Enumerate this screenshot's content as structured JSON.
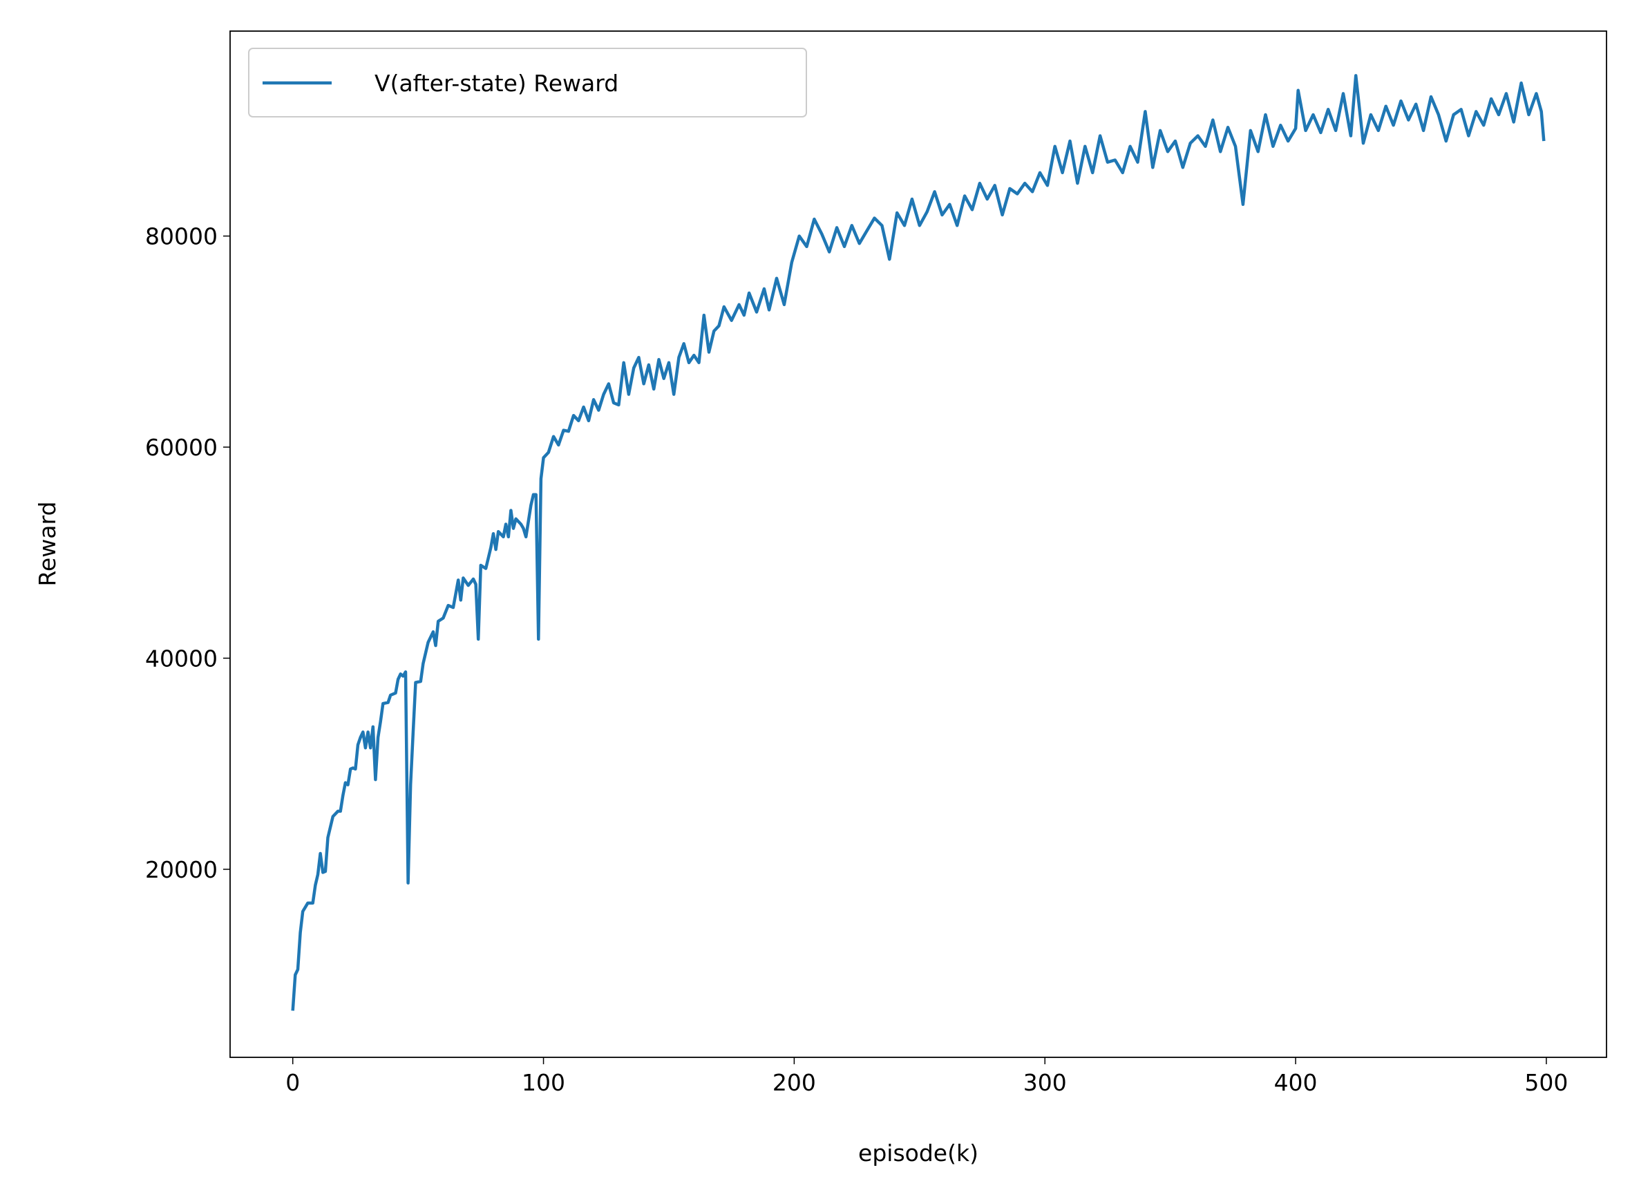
{
  "chart_data": {
    "type": "line",
    "xlabel": "episode(k)",
    "ylabel": "Reward",
    "xlim": [
      -25,
      524
    ],
    "ylim": [
      2180,
      99420
    ],
    "xticks": [
      0,
      100,
      200,
      300,
      400,
      500
    ],
    "yticks": [
      20000,
      40000,
      60000,
      80000
    ],
    "legend": "upper left",
    "grid": false,
    "series": [
      {
        "name": "V(after-state) Reward",
        "color": "#1f77b4",
        "x": [
          0,
          1,
          2,
          3,
          4,
          6,
          8,
          9,
          10,
          11,
          12,
          13,
          14,
          16,
          18,
          19,
          20,
          21,
          22,
          23,
          24,
          25,
          26,
          27,
          28,
          29,
          30,
          31,
          32,
          33,
          34,
          35,
          36,
          38,
          39,
          41,
          42,
          43,
          44,
          45,
          46,
          47,
          48,
          49,
          51,
          52,
          54,
          56,
          57,
          58,
          60,
          62,
          64,
          66,
          67,
          68,
          70,
          72,
          73,
          74,
          75,
          77,
          79,
          80,
          81,
          82,
          84,
          85,
          86,
          87,
          88,
          89,
          91,
          92,
          93,
          94,
          95,
          96,
          97,
          98,
          99,
          100,
          102,
          104,
          106,
          108,
          110,
          112,
          114,
          116,
          118,
          120,
          122,
          124,
          126,
          128,
          130,
          132,
          134,
          136,
          138,
          140,
          142,
          144,
          146,
          148,
          150,
          152,
          154,
          156,
          158,
          160,
          162,
          164,
          166,
          168,
          170,
          172,
          175,
          178,
          180,
          182,
          185,
          188,
          190,
          193,
          196,
          199,
          202,
          205,
          208,
          211,
          214,
          217,
          220,
          223,
          226,
          229,
          232,
          235,
          238,
          241,
          244,
          247,
          250,
          253,
          256,
          259,
          262,
          265,
          268,
          271,
          274,
          277,
          280,
          283,
          286,
          289,
          292,
          295,
          298,
          301,
          304,
          307,
          310,
          313,
          316,
          319,
          322,
          325,
          328,
          331,
          334,
          337,
          340,
          343,
          346,
          349,
          352,
          355,
          358,
          361,
          364,
          367,
          370,
          373,
          376,
          379,
          382,
          385,
          388,
          391,
          394,
          397,
          400,
          401,
          404,
          407,
          410,
          413,
          416,
          419,
          422,
          424,
          427,
          430,
          433,
          436,
          439,
          442,
          445,
          448,
          451,
          454,
          457,
          460,
          463,
          466,
          469,
          472,
          475,
          478,
          481,
          484,
          487,
          490,
          493,
          496,
          498,
          499
        ],
        "values": [
          6600,
          10000,
          10500,
          14000,
          16000,
          16800,
          16800,
          18500,
          19500,
          21500,
          19700,
          19800,
          23000,
          25000,
          25500,
          25500,
          27000,
          28200,
          28000,
          29500,
          29600,
          29500,
          31800,
          32500,
          33000,
          31500,
          33000,
          31500,
          33500,
          28500,
          32500,
          34000,
          35700,
          35800,
          36500,
          36700,
          38000,
          38500,
          38300,
          38700,
          18700,
          28000,
          33000,
          37700,
          37800,
          39500,
          41500,
          42500,
          41200,
          43500,
          43800,
          45000,
          44800,
          47400,
          45500,
          47600,
          46900,
          47500,
          47000,
          41800,
          48800,
          48500,
          50500,
          51800,
          50300,
          52000,
          51500,
          52700,
          51500,
          54000,
          52300,
          53200,
          52700,
          52300,
          51500,
          53000,
          54500,
          55500,
          55500,
          41800,
          57000,
          59000,
          59500,
          61000,
          60200,
          61600,
          61500,
          63000,
          62500,
          63800,
          62500,
          64500,
          63500,
          65000,
          66000,
          64200,
          64000,
          68000,
          65000,
          67500,
          68500,
          66000,
          67800,
          65500,
          68300,
          66500,
          68000,
          65000,
          68500,
          69800,
          68000,
          68700,
          68000,
          72500,
          69000,
          71000,
          71500,
          73300,
          72000,
          73500,
          72500,
          74600,
          72800,
          75000,
          73000,
          76000,
          73500,
          77500,
          80000,
          79000,
          81600,
          80200,
          78500,
          80800,
          79000,
          81000,
          79300,
          80500,
          81700,
          81000,
          77800,
          82200,
          81000,
          83500,
          81000,
          82300,
          84200,
          82000,
          83000,
          81000,
          83800,
          82500,
          85000,
          83500,
          84800,
          82000,
          84500,
          84000,
          85000,
          84200,
          86000,
          84800,
          88500,
          86000,
          89000,
          85000,
          88500,
          86000,
          89500,
          87000,
          87200,
          86000,
          88500,
          87000,
          91800,
          86500,
          90000,
          88000,
          89000,
          86500,
          88800,
          89500,
          88500,
          91000,
          88000,
          90300,
          88500,
          83000,
          90000,
          88000,
          91500,
          88500,
          90500,
          89000,
          90200,
          93800,
          90000,
          91500,
          89800,
          92000,
          90000,
          93500,
          89500,
          95200,
          88800,
          91500,
          90000,
          92300,
          90500,
          92800,
          91000,
          92500,
          90000,
          93200,
          91500,
          89000,
          91500,
          92000,
          89500,
          91800,
          90500,
          93000,
          91500,
          93500,
          90800,
          94500,
          91500,
          93500,
          91800,
          89000
        ]
      }
    ]
  }
}
